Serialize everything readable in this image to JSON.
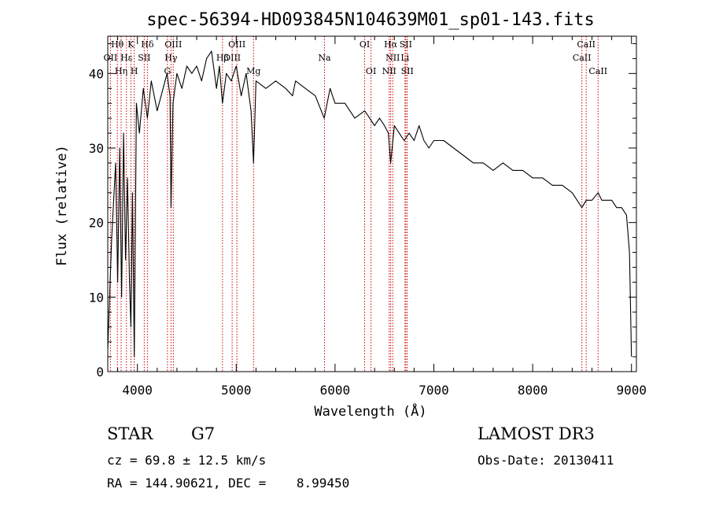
{
  "chart_data": {
    "type": "line",
    "title": "spec-56394-HD093845N104639M01_sp01-143.fits",
    "xlabel": "Wavelength (Å)",
    "ylabel": "Flux (relative)",
    "xlim": [
      3700,
      9050
    ],
    "ylim": [
      0,
      45
    ],
    "x_ticks": [
      4000,
      5000,
      6000,
      7000,
      8000,
      9000
    ],
    "y_ticks": [
      0,
      10,
      20,
      30,
      40
    ],
    "grid": false,
    "series": [
      {
        "name": "flux",
        "x": [
          3700,
          3740,
          3780,
          3800,
          3820,
          3840,
          3860,
          3880,
          3900,
          3920,
          3934,
          3950,
          3968,
          3990,
          4020,
          4060,
          4101,
          4140,
          4200,
          4260,
          4300,
          4330,
          4340,
          4360,
          4400,
          4450,
          4500,
          4550,
          4600,
          4650,
          4700,
          4750,
          4800,
          4830,
          4861,
          4900,
          4950,
          5000,
          5050,
          5100,
          5150,
          5175,
          5200,
          5300,
          5400,
          5500,
          5570,
          5600,
          5700,
          5800,
          5890,
          5950,
          6000,
          6100,
          6200,
          6300,
          6350,
          6400,
          6450,
          6500,
          6540,
          6563,
          6600,
          6650,
          6700,
          6750,
          6800,
          6850,
          6900,
          6950,
          7000,
          7100,
          7200,
          7300,
          7400,
          7500,
          7600,
          7700,
          7800,
          7900,
          8000,
          8100,
          8200,
          8300,
          8400,
          8498,
          8542,
          8600,
          8662,
          8700,
          8800,
          8850,
          8900,
          8950,
          8980,
          9000
        ],
        "y": [
          3,
          18,
          28,
          12,
          30,
          10,
          32,
          15,
          26,
          12,
          6,
          24,
          2,
          36,
          32,
          38,
          34,
          39,
          35,
          38,
          40,
          37,
          22,
          36,
          40,
          38,
          41,
          40,
          41,
          39,
          42,
          43,
          38,
          41,
          36,
          40,
          39,
          41,
          37,
          40,
          35,
          28,
          39,
          38,
          39,
          38,
          37,
          39,
          38,
          37,
          34,
          38,
          36,
          36,
          34,
          35,
          34,
          33,
          34,
          33,
          32,
          28,
          33,
          32,
          31,
          32,
          31,
          33,
          31,
          30,
          31,
          31,
          30,
          29,
          28,
          28,
          27,
          28,
          27,
          27,
          26,
          26,
          25,
          25,
          24,
          22,
          23,
          23,
          24,
          23,
          23,
          22,
          22,
          21,
          16,
          2
        ]
      }
    ],
    "spectral_lines": [
      {
        "label": "Hθ",
        "x": 3797,
        "row": 0
      },
      {
        "label": "OII",
        "x": 3727,
        "row": 1
      },
      {
        "label": "Hη",
        "x": 3835,
        "row": 2
      },
      {
        "label": "Hε",
        "x": 3889,
        "row": 1
      },
      {
        "label": "K",
        "x": 3934,
        "row": 0
      },
      {
        "label": "H",
        "x": 3968,
        "row": 2
      },
      {
        "label": "Hδ",
        "x": 4101,
        "row": 0
      },
      {
        "label": "SII",
        "x": 4069,
        "row": 1
      },
      {
        "label": "OIII",
        "x": 4363,
        "row": 0
      },
      {
        "label": "Hγ",
        "x": 4340,
        "row": 1
      },
      {
        "label": "G",
        "x": 4304,
        "row": 2
      },
      {
        "label": "OIII",
        "x": 5007,
        "row": 0
      },
      {
        "label": "OIII",
        "x": 4959,
        "row": 1
      },
      {
        "label": "Hβ",
        "x": 4861,
        "row": 1
      },
      {
        "label": "Mg",
        "x": 5175,
        "row": 2
      },
      {
        "label": "Na",
        "x": 5893,
        "row": 1
      },
      {
        "label": "OI",
        "x": 6300,
        "row": 0
      },
      {
        "label": "OI",
        "x": 6364,
        "row": 2
      },
      {
        "label": "Hα",
        "x": 6563,
        "row": 0
      },
      {
        "label": "NII",
        "x": 6584,
        "row": 1
      },
      {
        "label": "NII",
        "x": 6548,
        "row": 2
      },
      {
        "label": "SII",
        "x": 6716,
        "row": 0
      },
      {
        "label": "Li",
        "x": 6708,
        "row": 1
      },
      {
        "label": "SII",
        "x": 6731,
        "row": 2
      },
      {
        "label": "CaII",
        "x": 8542,
        "row": 0
      },
      {
        "label": "CaII",
        "x": 8498,
        "row": 1
      },
      {
        "label": "CaII",
        "x": 8662,
        "row": 2
      }
    ],
    "line_color": "#000000",
    "marker_color": "#cc0000"
  },
  "info": {
    "object_class": "STAR",
    "subclass": "G7",
    "survey": "LAMOST DR3",
    "redshift": "cz = 69.8 ± 12.5 km/s",
    "obs_date": "Obs-Date: 20130411",
    "coordinates": "RA = 144.90621, DEC =    8.99450"
  }
}
